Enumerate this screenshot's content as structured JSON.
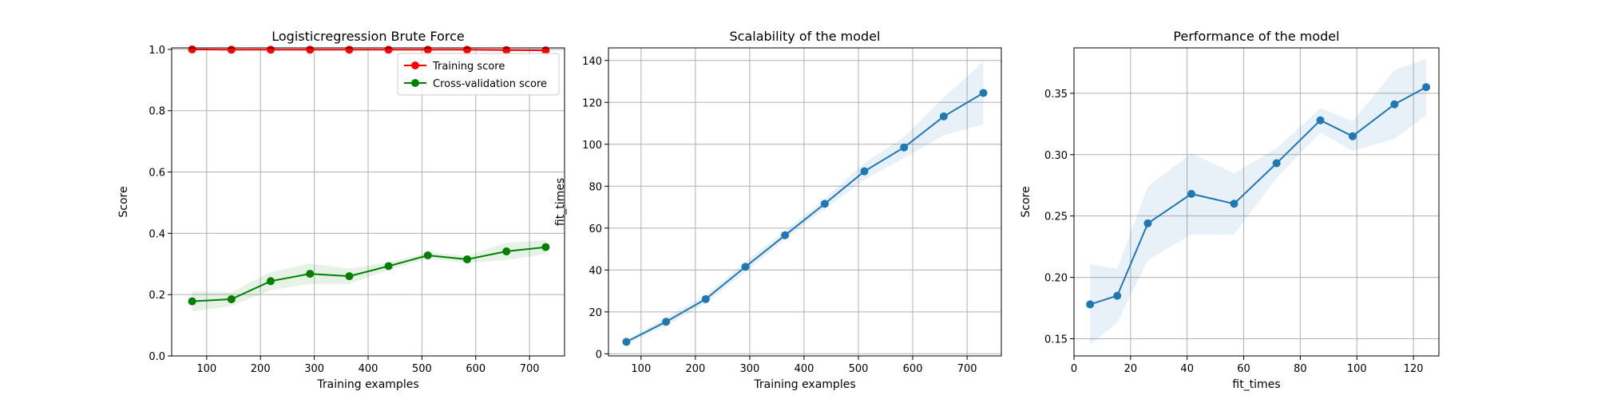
{
  "chart_data": [
    {
      "type": "line",
      "title": "Logisticregression Brute Force",
      "xlabel": "Training examples",
      "ylabel": "Score",
      "xlim": [
        35,
        765
      ],
      "ylim": [
        0.0,
        1.005
      ],
      "xticks": [
        100,
        200,
        300,
        400,
        500,
        600,
        700
      ],
      "yticks": [
        0.0,
        0.2,
        0.4,
        0.6,
        0.8,
        1.0
      ],
      "ytick_labels": [
        "0.0",
        "0.2",
        "0.4",
        "0.6",
        "0.8",
        "1.0"
      ],
      "grid": true,
      "legend": "top-right",
      "x": [
        73,
        146,
        219,
        292,
        365,
        438,
        511,
        584,
        657,
        730
      ],
      "series": [
        {
          "name": "Training score",
          "color": "#ff0000",
          "values": [
            1.0,
            0.999,
            0.999,
            0.999,
            0.999,
            0.999,
            0.999,
            0.999,
            0.998,
            0.997
          ],
          "std": [
            0.001,
            0.001,
            0.001,
            0.001,
            0.001,
            0.001,
            0.001,
            0.001,
            0.001,
            0.001
          ]
        },
        {
          "name": "Cross-validation score",
          "color": "#008000",
          "values": [
            0.178,
            0.185,
            0.244,
            0.268,
            0.26,
            0.293,
            0.328,
            0.315,
            0.341,
            0.355
          ],
          "std": [
            0.033,
            0.022,
            0.03,
            0.033,
            0.025,
            0.012,
            0.01,
            0.012,
            0.028,
            0.023
          ]
        }
      ]
    },
    {
      "type": "line",
      "title": "Scalability of the model",
      "xlabel": "Training examples",
      "ylabel": "fit_times",
      "xlim": [
        40,
        763
      ],
      "ylim": [
        -1,
        146
      ],
      "xticks": [
        100,
        200,
        300,
        400,
        500,
        600,
        700
      ],
      "yticks": [
        0,
        20,
        40,
        60,
        80,
        100,
        120,
        140
      ],
      "ytick_labels": [
        "0",
        "20",
        "40",
        "60",
        "80",
        "100",
        "120",
        "140"
      ],
      "grid": true,
      "x": [
        73,
        146,
        219,
        292,
        365,
        438,
        511,
        584,
        657,
        730
      ],
      "series": [
        {
          "color": "#1f77b4",
          "values": [
            5.7,
            15.3,
            26.1,
            41.5,
            56.6,
            71.6,
            87.1,
            98.5,
            113.3,
            124.5
          ],
          "std": [
            1.0,
            2.0,
            2.0,
            2.5,
            2.0,
            2.5,
            4.0,
            5.0,
            9.0,
            15.0
          ]
        }
      ]
    },
    {
      "type": "line",
      "title": "Performance of the model",
      "xlabel": "fit_times",
      "ylabel": "Score",
      "xlim": [
        0,
        129
      ],
      "ylim": [
        0.136,
        0.387
      ],
      "xticks": [
        0,
        20,
        40,
        60,
        80,
        100,
        120
      ],
      "yticks": [
        0.15,
        0.2,
        0.25,
        0.3,
        0.35
      ],
      "ytick_labels": [
        "0.15",
        "0.20",
        "0.25",
        "0.30",
        "0.35"
      ],
      "grid": true,
      "x": [
        5.7,
        15.3,
        26.1,
        41.5,
        56.6,
        71.6,
        87.1,
        98.5,
        113.3,
        124.5
      ],
      "series": [
        {
          "color": "#1f77b4",
          "values": [
            0.178,
            0.185,
            0.244,
            0.268,
            0.26,
            0.293,
            0.328,
            0.315,
            0.341,
            0.355
          ],
          "std": [
            0.033,
            0.022,
            0.03,
            0.033,
            0.025,
            0.012,
            0.01,
            0.012,
            0.028,
            0.023
          ]
        }
      ]
    }
  ]
}
